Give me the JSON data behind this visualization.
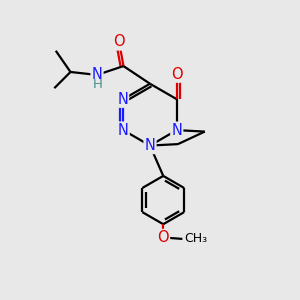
{
  "bg_color": "#e8e8e8",
  "atom_colors": {
    "C": "#000000",
    "N": "#1a1aff",
    "O": "#dd0000",
    "H": "#4a8f8f"
  },
  "bond_color": "#000000",
  "bond_width": 1.6,
  "font_size_atom": 10.5,
  "fig_size": [
    3.0,
    3.0
  ],
  "dpi": 100
}
